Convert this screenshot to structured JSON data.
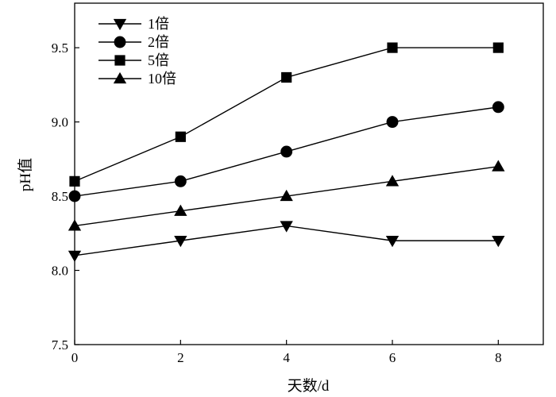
{
  "chart_data": {
    "type": "line",
    "title": "",
    "xlabel": "天数/d",
    "ylabel": "pH值",
    "x": [
      0,
      2,
      4,
      6,
      8
    ],
    "xlim": [
      0,
      8.85
    ],
    "ylim": [
      7.5,
      9.8
    ],
    "xticks": [
      "0",
      "2",
      "4",
      "6",
      "8"
    ],
    "yticks": [
      "7.5",
      "8.0",
      "8.5",
      "9.0",
      "9.5"
    ],
    "grid": false,
    "legend_position": "top-left",
    "series": [
      {
        "name": "1倍",
        "marker": "triangle-down",
        "values": [
          8.1,
          8.2,
          8.3,
          8.2,
          8.2
        ]
      },
      {
        "name": "2倍",
        "marker": "circle",
        "values": [
          8.5,
          8.6,
          8.8,
          9.0,
          9.1
        ]
      },
      {
        "name": "5倍",
        "marker": "square",
        "values": [
          8.6,
          8.9,
          9.3,
          9.5,
          9.5
        ]
      },
      {
        "name": "10倍",
        "marker": "triangle-up",
        "values": [
          8.3,
          8.4,
          8.5,
          8.6,
          8.7
        ]
      }
    ],
    "colors": {
      "line": "#000000",
      "marker": "#000000"
    }
  }
}
